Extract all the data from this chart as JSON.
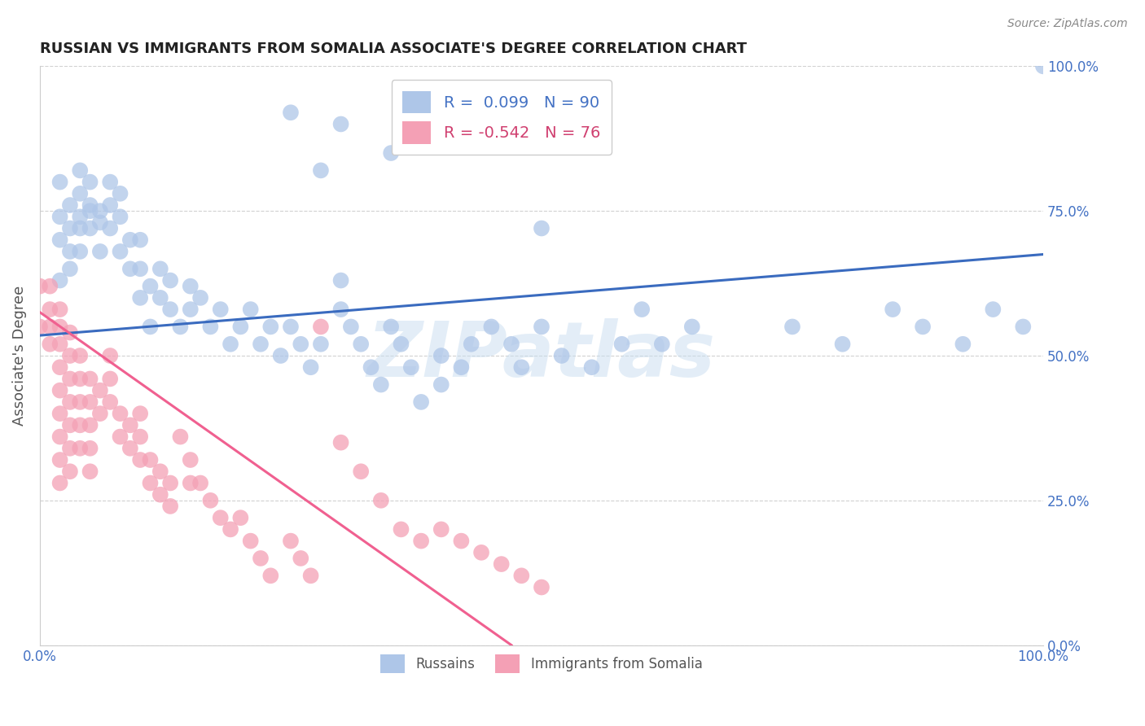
{
  "title": "RUSSIAN VS IMMIGRANTS FROM SOMALIA ASSOCIATE'S DEGREE CORRELATION CHART",
  "source": "Source: ZipAtlas.com",
  "ylabel": "Associate's Degree",
  "ytick_labels": [
    "0.0%",
    "25.0%",
    "50.0%",
    "75.0%",
    "100.0%"
  ],
  "ytick_values": [
    0.0,
    0.25,
    0.5,
    0.75,
    1.0
  ],
  "xlim": [
    0.0,
    1.0
  ],
  "ylim": [
    0.0,
    1.0
  ],
  "watermark": "ZIPatlas",
  "legend_r1": "0.099",
  "legend_n1": "90",
  "legend_r2": "-0.542",
  "legend_n2": "76",
  "russian_color": "#aec6e8",
  "somalia_color": "#f4a0b5",
  "russian_line_color": "#3a6bbf",
  "somalia_line_color": "#f06090",
  "title_color": "#222222",
  "right_axis_label_color": "#4472c4",
  "ylabel_color": "#555555",
  "background_color": "#ffffff",
  "grid_color": "#cccccc",
  "russian_trend_x": [
    0.0,
    1.0
  ],
  "russian_trend_y": [
    0.535,
    0.675
  ],
  "somalia_trend_x": [
    0.0,
    0.47
  ],
  "somalia_trend_y": [
    0.575,
    0.0
  ],
  "russian_scatter_x": [
    0.02,
    0.02,
    0.02,
    0.02,
    0.03,
    0.03,
    0.03,
    0.03,
    0.04,
    0.04,
    0.04,
    0.04,
    0.04,
    0.05,
    0.05,
    0.05,
    0.05,
    0.06,
    0.06,
    0.06,
    0.07,
    0.07,
    0.07,
    0.08,
    0.08,
    0.08,
    0.09,
    0.09,
    0.1,
    0.1,
    0.1,
    0.11,
    0.11,
    0.12,
    0.12,
    0.13,
    0.13,
    0.14,
    0.15,
    0.15,
    0.16,
    0.17,
    0.18,
    0.19,
    0.2,
    0.21,
    0.22,
    0.23,
    0.24,
    0.25,
    0.26,
    0.27,
    0.28,
    0.3,
    0.3,
    0.31,
    0.32,
    0.33,
    0.34,
    0.35,
    0.36,
    0.37,
    0.38,
    0.4,
    0.4,
    0.42,
    0.43,
    0.45,
    0.47,
    0.48,
    0.5,
    0.52,
    0.55,
    0.58,
    0.6,
    0.62,
    0.65,
    0.75,
    0.8,
    0.85,
    0.88,
    0.92,
    0.95,
    0.98,
    1.0,
    0.3,
    0.35,
    0.25,
    0.5,
    0.28
  ],
  "russian_scatter_y": [
    0.63,
    0.7,
    0.74,
    0.8,
    0.65,
    0.72,
    0.76,
    0.68,
    0.68,
    0.74,
    0.78,
    0.82,
    0.72,
    0.75,
    0.8,
    0.72,
    0.76,
    0.73,
    0.68,
    0.75,
    0.72,
    0.76,
    0.8,
    0.68,
    0.74,
    0.78,
    0.65,
    0.7,
    0.6,
    0.65,
    0.7,
    0.55,
    0.62,
    0.6,
    0.65,
    0.58,
    0.63,
    0.55,
    0.58,
    0.62,
    0.6,
    0.55,
    0.58,
    0.52,
    0.55,
    0.58,
    0.52,
    0.55,
    0.5,
    0.55,
    0.52,
    0.48,
    0.52,
    0.58,
    0.63,
    0.55,
    0.52,
    0.48,
    0.45,
    0.55,
    0.52,
    0.48,
    0.42,
    0.45,
    0.5,
    0.48,
    0.52,
    0.55,
    0.52,
    0.48,
    0.55,
    0.5,
    0.48,
    0.52,
    0.58,
    0.52,
    0.55,
    0.55,
    0.52,
    0.58,
    0.55,
    0.52,
    0.58,
    0.55,
    1.0,
    0.9,
    0.85,
    0.92,
    0.72,
    0.82
  ],
  "somalia_scatter_x": [
    0.0,
    0.0,
    0.01,
    0.01,
    0.01,
    0.01,
    0.02,
    0.02,
    0.02,
    0.02,
    0.02,
    0.02,
    0.02,
    0.02,
    0.02,
    0.03,
    0.03,
    0.03,
    0.03,
    0.03,
    0.03,
    0.03,
    0.04,
    0.04,
    0.04,
    0.04,
    0.04,
    0.05,
    0.05,
    0.05,
    0.05,
    0.05,
    0.06,
    0.06,
    0.07,
    0.07,
    0.07,
    0.08,
    0.08,
    0.09,
    0.09,
    0.1,
    0.1,
    0.1,
    0.11,
    0.11,
    0.12,
    0.12,
    0.13,
    0.13,
    0.14,
    0.15,
    0.15,
    0.16,
    0.17,
    0.18,
    0.19,
    0.2,
    0.21,
    0.22,
    0.23,
    0.25,
    0.26,
    0.27,
    0.28,
    0.3,
    0.32,
    0.34,
    0.36,
    0.38,
    0.4,
    0.42,
    0.44,
    0.46,
    0.48,
    0.5
  ],
  "somalia_scatter_y": [
    0.55,
    0.62,
    0.58,
    0.52,
    0.55,
    0.62,
    0.58,
    0.55,
    0.52,
    0.48,
    0.44,
    0.4,
    0.36,
    0.32,
    0.28,
    0.54,
    0.5,
    0.46,
    0.42,
    0.38,
    0.34,
    0.3,
    0.5,
    0.46,
    0.42,
    0.38,
    0.34,
    0.46,
    0.42,
    0.38,
    0.34,
    0.3,
    0.44,
    0.4,
    0.5,
    0.46,
    0.42,
    0.4,
    0.36,
    0.38,
    0.34,
    0.4,
    0.36,
    0.32,
    0.32,
    0.28,
    0.3,
    0.26,
    0.28,
    0.24,
    0.36,
    0.32,
    0.28,
    0.28,
    0.25,
    0.22,
    0.2,
    0.22,
    0.18,
    0.15,
    0.12,
    0.18,
    0.15,
    0.12,
    0.55,
    0.35,
    0.3,
    0.25,
    0.2,
    0.18,
    0.2,
    0.18,
    0.16,
    0.14,
    0.12,
    0.1
  ]
}
